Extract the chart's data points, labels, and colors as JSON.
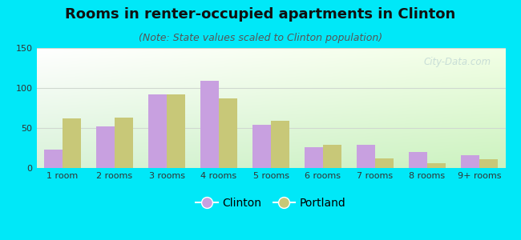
{
  "title": "Rooms in renter-occupied apartments in Clinton",
  "subtitle": "(Note: State values scaled to Clinton population)",
  "categories": [
    "1 room",
    "2 rooms",
    "3 rooms",
    "4 rooms",
    "5 rooms",
    "6 rooms",
    "7 rooms",
    "8 rooms",
    "9+ rooms"
  ],
  "clinton_values": [
    23,
    52,
    92,
    109,
    54,
    26,
    29,
    20,
    16
  ],
  "portland_values": [
    62,
    63,
    92,
    87,
    59,
    29,
    12,
    6,
    11
  ],
  "clinton_color": "#c8a0e0",
  "portland_color": "#c8c878",
  "ylim": [
    0,
    150
  ],
  "yticks": [
    0,
    50,
    100,
    150
  ],
  "bar_width": 0.35,
  "background_outer": "#00e8f8",
  "grid_color": "#d0d8d0",
  "title_fontsize": 13,
  "subtitle_fontsize": 9,
  "legend_fontsize": 10,
  "tick_fontsize": 8,
  "watermark_text": "City-Data.com",
  "watermark_color": "#a8c4cc",
  "watermark_alpha": 0.55
}
